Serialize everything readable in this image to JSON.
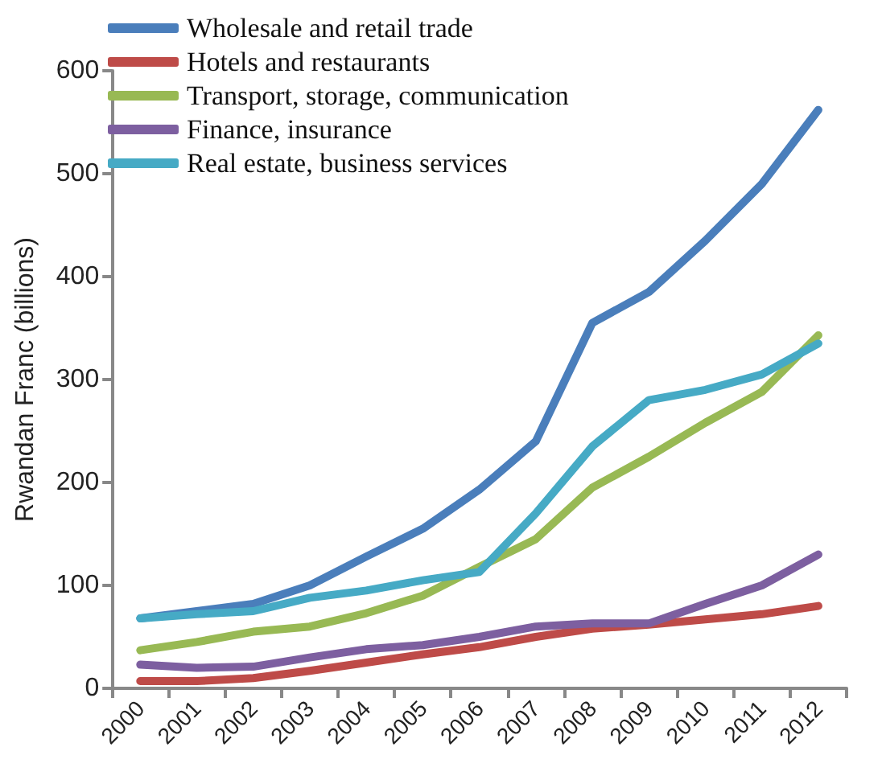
{
  "chart_data": {
    "type": "line",
    "ylabel": "Rwandan Franc (billions)",
    "categories": [
      "2000",
      "2001",
      "2002",
      "2003",
      "2004",
      "2005",
      "2006",
      "2007",
      "2008",
      "2009",
      "2010",
      "2011",
      "2012"
    ],
    "series": [
      {
        "name": "Wholesale and retail trade",
        "color": "#4a7ebb",
        "values": [
          68,
          75,
          82,
          100,
          128,
          155,
          193,
          240,
          355,
          385,
          435,
          490,
          562
        ]
      },
      {
        "name": "Hotels and restaurants",
        "color": "#be4b48",
        "values": [
          7,
          7,
          10,
          17,
          25,
          33,
          40,
          50,
          58,
          62,
          67,
          72,
          80
        ]
      },
      {
        "name": "Transport, storage, communication",
        "color": "#98b954",
        "values": [
          37,
          45,
          55,
          60,
          73,
          90,
          118,
          145,
          195,
          225,
          258,
          288,
          343
        ]
      },
      {
        "name": "Finance, insurance",
        "color": "#7d5fa0",
        "values": [
          23,
          20,
          21,
          30,
          38,
          42,
          50,
          60,
          63,
          63,
          82,
          100,
          130
        ]
      },
      {
        "name": "Real estate, business services",
        "color": "#46aac5",
        "values": [
          68,
          72,
          75,
          88,
          95,
          105,
          113,
          170,
          235,
          280,
          290,
          305,
          335
        ]
      }
    ],
    "ylim": [
      0,
      600
    ],
    "yticks": [
      0,
      100,
      200,
      300,
      400,
      500,
      600
    ],
    "grid": false,
    "legend": "top left",
    "marker": "none",
    "line_style": "solid"
  }
}
